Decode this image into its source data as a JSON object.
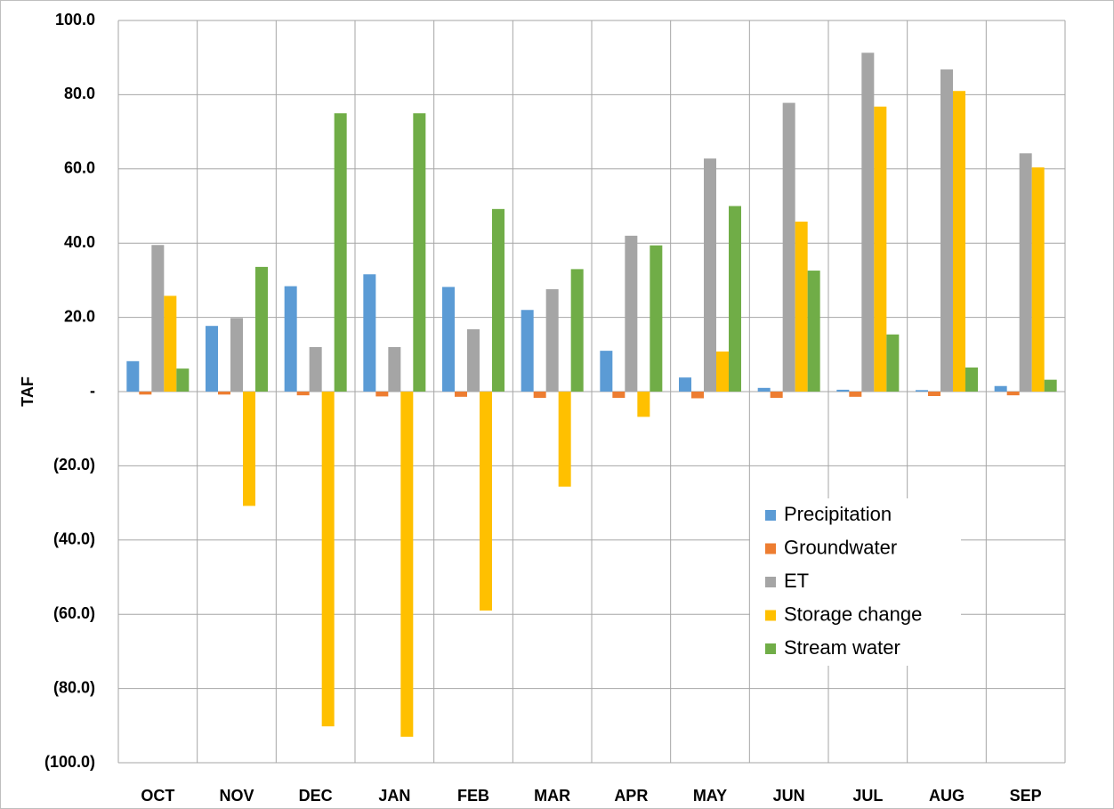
{
  "chart_data": {
    "type": "bar",
    "y_label": "TAF",
    "categories": [
      "OCT",
      "NOV",
      "DEC",
      "JAN",
      "FEB",
      "MAR",
      "APR",
      "MAY",
      "JUN",
      "JUL",
      "AUG",
      "SEP"
    ],
    "series": [
      {
        "name": "Precipitation",
        "color": "#5b9bd5",
        "values": [
          8.2,
          17.7,
          28.4,
          31.6,
          28.2,
          22.0,
          11.0,
          3.8,
          1.0,
          0.5,
          0.4,
          1.5
        ]
      },
      {
        "name": "Groundwater",
        "color": "#ed7d31",
        "values": [
          -0.8,
          -0.8,
          -1.0,
          -1.3,
          -1.4,
          -1.7,
          -1.7,
          -1.8,
          -1.7,
          -1.4,
          -1.2,
          -1.0
        ]
      },
      {
        "name": "ET",
        "color": "#a5a5a5",
        "values": [
          39.5,
          19.8,
          12.0,
          12.0,
          16.8,
          27.6,
          42.0,
          62.8,
          77.8,
          91.3,
          86.8,
          64.2
        ]
      },
      {
        "name": "Storage change",
        "color": "#ffc000",
        "values": [
          25.8,
          -30.8,
          -90.2,
          -93.0,
          -59.0,
          -25.6,
          -6.8,
          10.8,
          45.8,
          76.8,
          81.0,
          60.4
        ]
      },
      {
        "name": "Stream water",
        "color": "#70ad47",
        "values": [
          6.2,
          33.6,
          75.0,
          75.0,
          49.2,
          33.0,
          39.4,
          50.0,
          32.6,
          15.4,
          6.5,
          3.2
        ]
      }
    ],
    "ylim": [
      -100,
      100
    ],
    "yticks": [
      {
        "value": -100,
        "label": "(100.0)"
      },
      {
        "value": -80,
        "label": "(80.0)"
      },
      {
        "value": -60,
        "label": "(60.0)"
      },
      {
        "value": -40,
        "label": "(40.0)"
      },
      {
        "value": -20,
        "label": "(20.0)"
      },
      {
        "value": 0,
        "label": "-"
      },
      {
        "value": 20,
        "label": "20.0"
      },
      {
        "value": 40,
        "label": "40.0"
      },
      {
        "value": 60,
        "label": "60.0"
      },
      {
        "value": 80,
        "label": "80.0"
      },
      {
        "value": 100,
        "label": "100.0"
      }
    ],
    "grid": true,
    "legend": "lower right"
  }
}
